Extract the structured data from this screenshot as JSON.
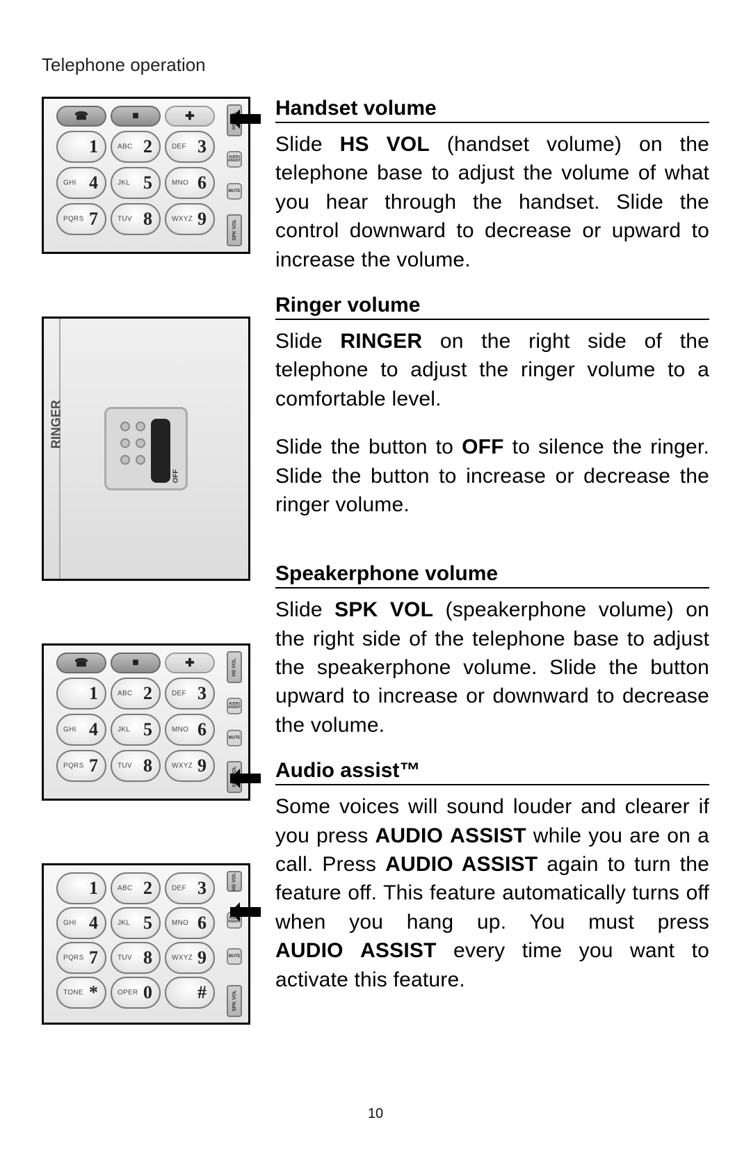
{
  "page_header": "Telephone operation",
  "page_number": "10",
  "sections": [
    {
      "title": "Handset volume",
      "paragraphs": [
        "Slide <b>HS&nbsp;VOL</b> (handset volume) on the telephone base to adjust the volume of what you hear through the handset. Slide the control downward to decrease or upward to increase the volume."
      ]
    },
    {
      "title": "Ringer volume",
      "paragraphs": [
        "Slide <b>RINGER</b> on the right side of the telephone to adjust the ringer volume to a comfortable level.",
        "Slide the button to <b>OFF</b> to silence the ringer. Slide the button to increase or decrease the ringer volume."
      ]
    },
    {
      "title": "Speakerphone volume",
      "paragraphs": [
        "Slide <b>SPK&nbsp;VOL</b> (speakerphone volume) on the right side of the telephone base to adjust the speakerphone volume. Slide the button upward to increase or downward to decrease the volume."
      ]
    },
    {
      "title": "Audio assist™",
      "paragraphs": [
        "Some voices will sound louder and clearer if you press <b>AUDIO&nbsp;ASSIST</b> while you are on a call. Press <b>AUDIO ASSIST</b> again to turn the feature off. This feature automatically turns off when you hang up. You must press <b>AUDIO&nbsp;ASSIST</b> every time you want to activate this feature."
      ]
    }
  ],
  "keypad": {
    "keys": [
      {
        "small": "",
        "big": "1"
      },
      {
        "small": "ABC",
        "big": "2"
      },
      {
        "small": "DEF",
        "big": "3"
      },
      {
        "small": "GHI",
        "big": "4"
      },
      {
        "small": "JKL",
        "big": "5"
      },
      {
        "small": "MNO",
        "big": "6"
      },
      {
        "small": "PQRS",
        "big": "7"
      },
      {
        "small": "TUV",
        "big": "8"
      },
      {
        "small": "WXYZ",
        "big": "9"
      },
      {
        "small": "TONE",
        "big": "*"
      },
      {
        "small": "OPER",
        "big": "0"
      },
      {
        "small": "",
        "big": "#"
      }
    ],
    "right_labels": {
      "top": "HS VOL",
      "audio": "AUDIO ASSIST",
      "mute": "MUTE",
      "bottom": "SPK VOL"
    },
    "top_icons": [
      "☎",
      "■",
      "➕"
    ]
  },
  "ringer": {
    "label": "RINGER",
    "off": "OFF"
  },
  "colors": {
    "text": "#000000",
    "bg": "#ffffff",
    "illus_border": "#000000",
    "key_border": "#7a7a7a"
  }
}
